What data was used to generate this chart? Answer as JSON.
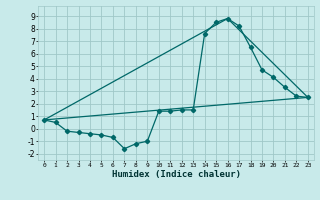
{
  "xlabel": "Humidex (Indice chaleur)",
  "xlim": [
    -0.5,
    23.5
  ],
  "ylim": [
    -2.5,
    9.8
  ],
  "yticks": [
    -2,
    -1,
    0,
    1,
    2,
    3,
    4,
    5,
    6,
    7,
    8,
    9
  ],
  "xticks": [
    0,
    1,
    2,
    3,
    4,
    5,
    6,
    7,
    8,
    9,
    10,
    11,
    12,
    13,
    14,
    15,
    16,
    17,
    18,
    19,
    20,
    21,
    22,
    23
  ],
  "background_color": "#c8eaea",
  "grid_color": "#a0c8c8",
  "line_color": "#006868",
  "line1_x": [
    0,
    1,
    2,
    3,
    4,
    5,
    6,
    7,
    8,
    9,
    10,
    11,
    12,
    13,
    14,
    15,
    16,
    17,
    18,
    19,
    20,
    21,
    22,
    23
  ],
  "line1_y": [
    0.7,
    0.5,
    -0.2,
    -0.3,
    -0.4,
    -0.5,
    -0.7,
    -1.6,
    -1.2,
    -1.0,
    1.4,
    1.4,
    1.5,
    1.5,
    7.6,
    8.5,
    8.8,
    8.2,
    6.5,
    4.7,
    4.1,
    3.3,
    2.6,
    2.5
  ],
  "line2_x": [
    0,
    23
  ],
  "line2_y": [
    0.7,
    2.5
  ],
  "line3_x": [
    0,
    16,
    23
  ],
  "line3_y": [
    0.7,
    8.8,
    2.5
  ]
}
